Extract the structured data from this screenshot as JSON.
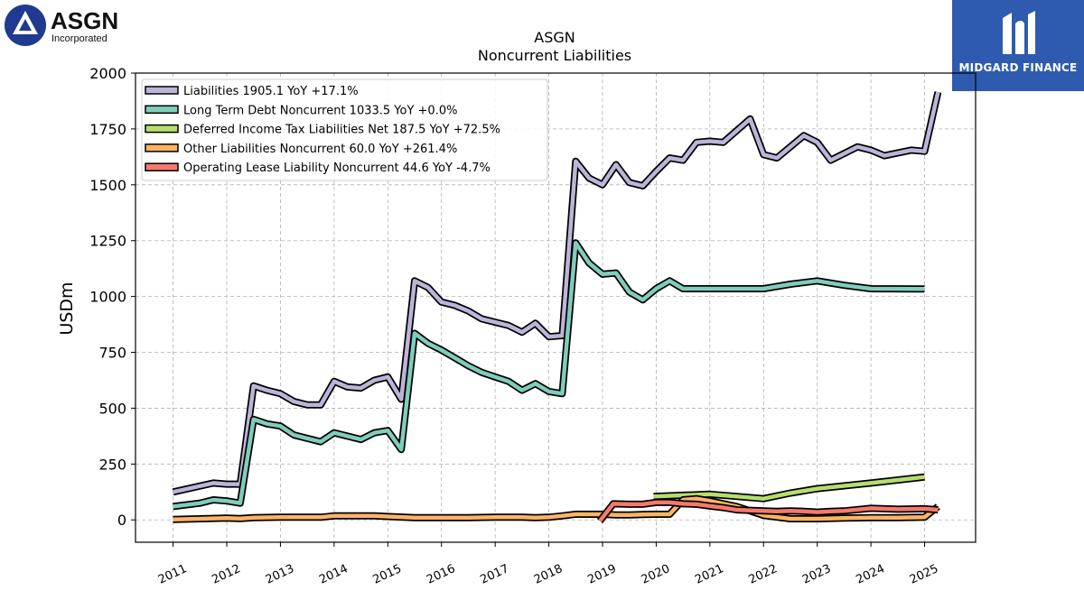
{
  "logos": {
    "left": {
      "name": "ASGN",
      "subtitle": "Incorporated"
    },
    "right": {
      "name": "MIDGARD FINANCE"
    }
  },
  "chart_data": {
    "type": "line",
    "title": "ASGN",
    "subtitle": "Noncurrent  Liabilities",
    "xlabel": "",
    "ylabel": "USDm",
    "xlim": [
      2010.3,
      2025.95
    ],
    "ylim": [
      -100,
      2000
    ],
    "yticks": [
      0,
      250,
      500,
      750,
      1000,
      1250,
      1500,
      1750,
      2000
    ],
    "xticks": [
      "2011",
      "2012",
      "2013",
      "2014",
      "2015",
      "2016",
      "2017",
      "2018",
      "2019",
      "2020",
      "2021",
      "2022",
      "2023",
      "2024",
      "2025"
    ],
    "grid": true,
    "legend_position": "top-left",
    "series": [
      {
        "name": "Liabilities",
        "legend": "Liabilities  1905.1 YoY +17.1%",
        "color": "#bcb5d8",
        "points": [
          [
            2011.0,
            125
          ],
          [
            2011.75,
            165
          ],
          [
            2012.0,
            160
          ],
          [
            2012.25,
            160
          ],
          [
            2012.5,
            600
          ],
          [
            2012.75,
            580
          ],
          [
            2013.0,
            565
          ],
          [
            2013.25,
            530
          ],
          [
            2013.5,
            515
          ],
          [
            2013.75,
            515
          ],
          [
            2014.0,
            620
          ],
          [
            2014.25,
            595
          ],
          [
            2014.5,
            590
          ],
          [
            2014.75,
            625
          ],
          [
            2015.0,
            640
          ],
          [
            2015.25,
            540
          ],
          [
            2015.5,
            1070
          ],
          [
            2015.75,
            1040
          ],
          [
            2016.0,
            975
          ],
          [
            2016.25,
            960
          ],
          [
            2016.5,
            935
          ],
          [
            2016.75,
            900
          ],
          [
            2017.0,
            885
          ],
          [
            2017.25,
            870
          ],
          [
            2017.5,
            840
          ],
          [
            2017.75,
            880
          ],
          [
            2018.0,
            820
          ],
          [
            2018.25,
            825
          ],
          [
            2018.5,
            1605
          ],
          [
            2018.75,
            1530
          ],
          [
            2019.0,
            1500
          ],
          [
            2019.25,
            1590
          ],
          [
            2019.5,
            1510
          ],
          [
            2019.75,
            1495
          ],
          [
            2020.0,
            1560
          ],
          [
            2020.25,
            1620
          ],
          [
            2020.5,
            1610
          ],
          [
            2020.75,
            1690
          ],
          [
            2021.0,
            1695
          ],
          [
            2021.25,
            1690
          ],
          [
            2021.75,
            1795
          ],
          [
            2022.0,
            1635
          ],
          [
            2022.25,
            1620
          ],
          [
            2022.75,
            1720
          ],
          [
            2023.0,
            1690
          ],
          [
            2023.25,
            1610
          ],
          [
            2023.75,
            1670
          ],
          [
            2024.0,
            1655
          ],
          [
            2024.25,
            1630
          ],
          [
            2024.75,
            1655
          ],
          [
            2025.0,
            1650
          ],
          [
            2025.25,
            1915
          ]
        ]
      },
      {
        "name": "Long Term Debt Noncurrent",
        "legend": "Long Term Debt Noncurrent  1033.5 YoY +0.0%",
        "color": "#7fcdbb",
        "points": [
          [
            2011.0,
            60
          ],
          [
            2011.5,
            75
          ],
          [
            2011.75,
            90
          ],
          [
            2012.0,
            85
          ],
          [
            2012.25,
            75
          ],
          [
            2012.5,
            450
          ],
          [
            2012.75,
            430
          ],
          [
            2013.0,
            420
          ],
          [
            2013.25,
            380
          ],
          [
            2013.5,
            365
          ],
          [
            2013.75,
            350
          ],
          [
            2014.0,
            390
          ],
          [
            2014.25,
            375
          ],
          [
            2014.5,
            360
          ],
          [
            2014.75,
            390
          ],
          [
            2015.0,
            400
          ],
          [
            2015.25,
            315
          ],
          [
            2015.5,
            835
          ],
          [
            2015.75,
            790
          ],
          [
            2016.0,
            760
          ],
          [
            2016.25,
            725
          ],
          [
            2016.5,
            690
          ],
          [
            2016.75,
            660
          ],
          [
            2017.0,
            640
          ],
          [
            2017.25,
            620
          ],
          [
            2017.5,
            580
          ],
          [
            2017.75,
            610
          ],
          [
            2018.0,
            575
          ],
          [
            2018.25,
            565
          ],
          [
            2018.5,
            1240
          ],
          [
            2018.75,
            1150
          ],
          [
            2019.0,
            1100
          ],
          [
            2019.25,
            1105
          ],
          [
            2019.5,
            1020
          ],
          [
            2019.75,
            985
          ],
          [
            2020.0,
            1035
          ],
          [
            2020.25,
            1070
          ],
          [
            2020.5,
            1035
          ],
          [
            2020.75,
            1035
          ],
          [
            2021.0,
            1035
          ],
          [
            2021.5,
            1035
          ],
          [
            2022.0,
            1035
          ],
          [
            2022.5,
            1055
          ],
          [
            2023.0,
            1070
          ],
          [
            2023.5,
            1050
          ],
          [
            2024.0,
            1035
          ],
          [
            2025.0,
            1033.5
          ]
        ]
      },
      {
        "name": "Deferred Income Tax Liabilities Net",
        "legend": "Deferred Income Tax Liabilities Net  187.5 YoY +72.5%",
        "color": "#b6de6e",
        "points": [
          [
            2019.95,
            105
          ],
          [
            2021.0,
            115
          ],
          [
            2022.0,
            95
          ],
          [
            2022.5,
            120
          ],
          [
            2023.0,
            140
          ],
          [
            2024.0,
            165
          ],
          [
            2025.0,
            192
          ]
        ]
      },
      {
        "name": "Other Liabilities Noncurrent",
        "legend": "Other Liabilities Noncurrent  60.0 YoY +261.4%",
        "color": "#fcb465",
        "points": [
          [
            2011.0,
            2
          ],
          [
            2012.0,
            8
          ],
          [
            2012.25,
            6
          ],
          [
            2012.5,
            10
          ],
          [
            2013.0,
            12
          ],
          [
            2013.75,
            12
          ],
          [
            2014.0,
            18
          ],
          [
            2014.75,
            18
          ],
          [
            2015.0,
            15
          ],
          [
            2015.5,
            10
          ],
          [
            2016.0,
            10
          ],
          [
            2016.5,
            10
          ],
          [
            2017.0,
            12
          ],
          [
            2017.5,
            12
          ],
          [
            2017.75,
            10
          ],
          [
            2018.0,
            12
          ],
          [
            2018.25,
            18
          ],
          [
            2018.5,
            25
          ],
          [
            2019.0,
            25
          ],
          [
            2019.25,
            22
          ],
          [
            2019.5,
            22
          ],
          [
            2019.75,
            24
          ],
          [
            2020.0,
            25
          ],
          [
            2020.25,
            25
          ],
          [
            2020.5,
            90
          ],
          [
            2020.75,
            95
          ],
          [
            2021.0,
            85
          ],
          [
            2021.5,
            60
          ],
          [
            2021.75,
            40
          ],
          [
            2022.0,
            20
          ],
          [
            2022.5,
            5
          ],
          [
            2023.0,
            5
          ],
          [
            2023.5,
            8
          ],
          [
            2024.0,
            10
          ],
          [
            2024.5,
            10
          ],
          [
            2025.0,
            12
          ],
          [
            2025.25,
            60
          ]
        ]
      },
      {
        "name": "Operating Lease Liability Noncurrent",
        "legend": "Operating Lease Liability Noncurrent  44.6 YoY -4.7%",
        "color": "#f47a6b",
        "points": [
          [
            2018.95,
            -5
          ],
          [
            2019.2,
            72
          ],
          [
            2019.5,
            70
          ],
          [
            2019.75,
            70
          ],
          [
            2020.0,
            78
          ],
          [
            2020.25,
            78
          ],
          [
            2020.5,
            72
          ],
          [
            2020.75,
            70
          ],
          [
            2021.0,
            62
          ],
          [
            2021.25,
            55
          ],
          [
            2021.5,
            45
          ],
          [
            2022.0,
            40
          ],
          [
            2022.25,
            38
          ],
          [
            2022.5,
            40
          ],
          [
            2022.75,
            38
          ],
          [
            2023.0,
            35
          ],
          [
            2023.25,
            38
          ],
          [
            2023.5,
            40
          ],
          [
            2024.0,
            52
          ],
          [
            2024.5,
            48
          ],
          [
            2025.0,
            50
          ],
          [
            2025.25,
            45
          ]
        ]
      }
    ]
  }
}
